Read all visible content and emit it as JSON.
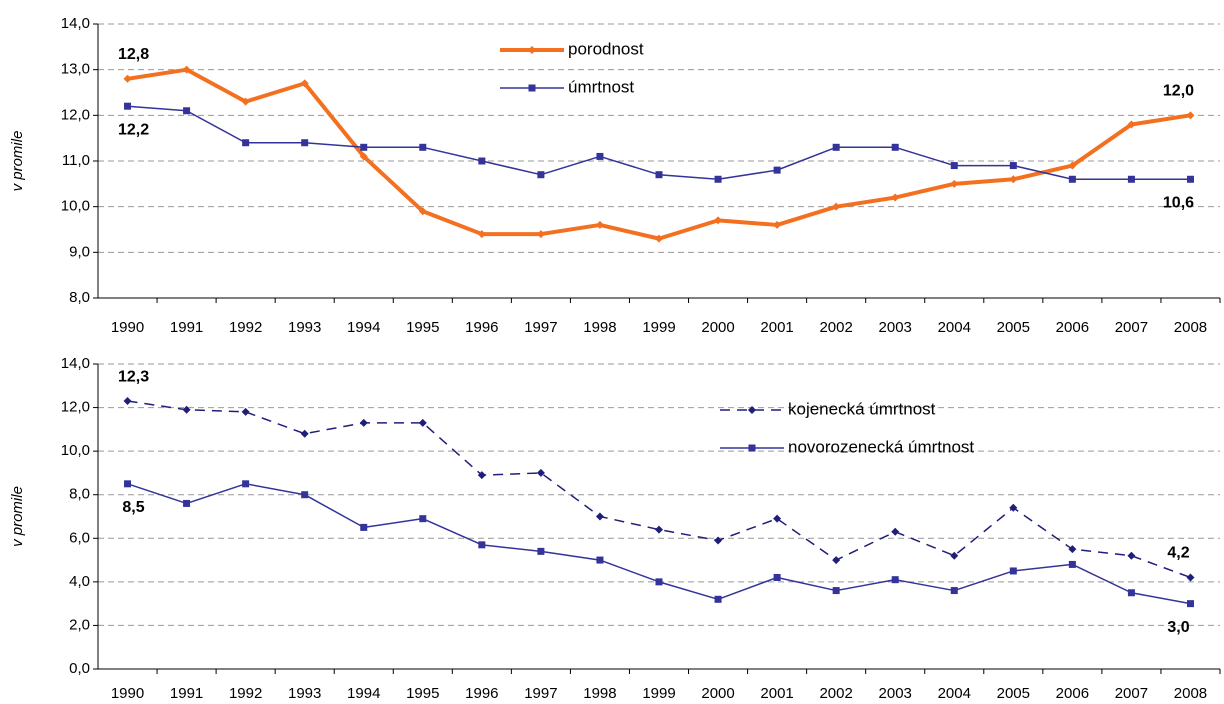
{
  "chart_data": [
    {
      "type": "line",
      "ylabel": "v promile",
      "categories": [
        "1990",
        "1991",
        "1992",
        "1993",
        "1994",
        "1995",
        "1996",
        "1997",
        "1998",
        "1999",
        "2000",
        "2001",
        "2002",
        "2003",
        "2004",
        "2005",
        "2006",
        "2007",
        "2008"
      ],
      "ylim": [
        8,
        14
      ],
      "yticks": [
        {
          "value": 8,
          "label": "8,0"
        },
        {
          "value": 9,
          "label": "9,0"
        },
        {
          "value": 10,
          "label": "10,0"
        },
        {
          "value": 11,
          "label": "11,0"
        },
        {
          "value": 12,
          "label": "12,0"
        },
        {
          "value": 13,
          "label": "13,0"
        },
        {
          "value": 14,
          "label": "14,0"
        }
      ],
      "grid": true,
      "legend_loc": "upper center",
      "series": [
        {
          "name": "porodnost",
          "color": "#f37021",
          "line_style": "solid",
          "line_width": 4,
          "marker": "diamond",
          "values": [
            12.8,
            13.0,
            12.3,
            12.7,
            11.1,
            9.9,
            9.4,
            9.4,
            9.6,
            9.3,
            9.7,
            9.6,
            10.0,
            10.2,
            10.5,
            10.6,
            10.9,
            11.8,
            12.0
          ],
          "value_labels": [
            "12,8",
            null,
            null,
            null,
            null,
            null,
            null,
            null,
            null,
            null,
            null,
            null,
            null,
            null,
            null,
            null,
            null,
            null,
            "12,0"
          ]
        },
        {
          "name": "úmrtnost",
          "color": "#333399",
          "line_style": "solid",
          "line_width": 1.5,
          "marker": "square",
          "values": [
            12.2,
            12.1,
            11.4,
            11.4,
            11.3,
            11.3,
            11.0,
            10.7,
            11.1,
            10.7,
            10.6,
            10.8,
            11.3,
            11.3,
            10.9,
            10.9,
            10.6,
            10.6,
            10.6
          ],
          "value_labels": [
            "12,2",
            null,
            null,
            null,
            null,
            null,
            null,
            null,
            null,
            null,
            null,
            null,
            null,
            null,
            null,
            null,
            null,
            null,
            "10,6"
          ]
        }
      ]
    },
    {
      "type": "line",
      "ylabel": "v promile",
      "categories": [
        "1990",
        "1991",
        "1992",
        "1993",
        "1994",
        "1995",
        "1996",
        "1997",
        "1998",
        "1999",
        "2000",
        "2001",
        "2002",
        "2003",
        "2004",
        "2005",
        "2006",
        "2007",
        "2008"
      ],
      "ylim": [
        0,
        14
      ],
      "yticks": [
        {
          "value": 0,
          "label": "0,0"
        },
        {
          "value": 2,
          "label": "2,0"
        },
        {
          "value": 4,
          "label": "4,0"
        },
        {
          "value": 6,
          "label": "6,0"
        },
        {
          "value": 8,
          "label": "8,0"
        },
        {
          "value": 10,
          "label": "10,0"
        },
        {
          "value": 12,
          "label": "12,0"
        },
        {
          "value": 14,
          "label": "14,0"
        }
      ],
      "grid": true,
      "legend_loc": "upper right",
      "series": [
        {
          "name": "kojenecká úmrtnost",
          "color": "#1f1f7a",
          "line_style": "dashed",
          "line_width": 1.5,
          "marker": "diamond",
          "values": [
            12.3,
            11.9,
            11.8,
            10.8,
            11.3,
            11.3,
            8.9,
            9.0,
            7.0,
            6.4,
            5.9,
            6.9,
            5.0,
            6.3,
            5.2,
            7.4,
            5.5,
            5.2,
            4.2
          ],
          "value_labels": [
            "12,3",
            null,
            null,
            null,
            null,
            null,
            null,
            null,
            null,
            null,
            null,
            null,
            null,
            null,
            null,
            null,
            null,
            null,
            "4,2"
          ]
        },
        {
          "name": "novorozenecká úmrtnost",
          "color": "#333399",
          "line_style": "solid",
          "line_width": 1.5,
          "marker": "square",
          "values": [
            8.5,
            7.6,
            8.5,
            8.0,
            6.5,
            6.9,
            5.7,
            5.4,
            5.0,
            4.0,
            3.2,
            4.2,
            3.6,
            4.1,
            3.6,
            4.5,
            4.8,
            3.5,
            3.0
          ],
          "value_labels": [
            "8,5",
            null,
            null,
            null,
            null,
            null,
            null,
            null,
            null,
            null,
            null,
            null,
            null,
            null,
            null,
            null,
            null,
            null,
            "3,0"
          ]
        }
      ]
    }
  ]
}
